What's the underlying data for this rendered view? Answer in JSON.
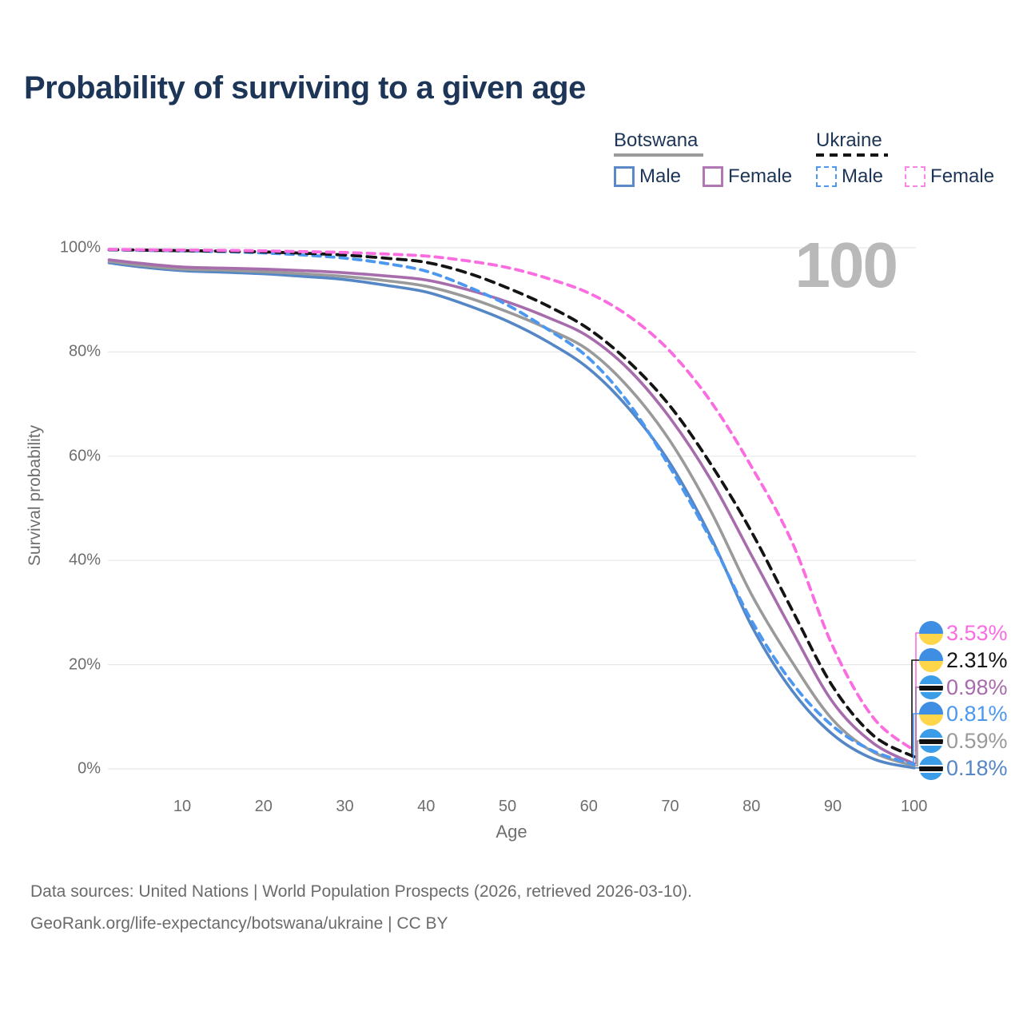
{
  "title": "Probability of surviving to a given age",
  "watermark": "100",
  "legend": {
    "groups": [
      {
        "country": "Botswana",
        "underline_style": "solid",
        "underline_color": "#9a9a9a",
        "items": [
          {
            "label": "Male",
            "color": "#5b88c6",
            "dashed": false
          },
          {
            "label": "Female",
            "color": "#b276b4",
            "dashed": false
          }
        ]
      },
      {
        "country": "Ukraine",
        "underline_style": "dashed",
        "underline_color": "#141414",
        "items": [
          {
            "label": "Male",
            "color": "#4c97f0",
            "dashed": true
          },
          {
            "label": "Female",
            "color": "#fb84e8",
            "dashed": true
          }
        ]
      }
    ]
  },
  "axes": {
    "y_label": "Survival probability",
    "x_label": "Age"
  },
  "chart_data": {
    "type": "line",
    "title": "Probability of surviving to a given age",
    "xlabel": "Age",
    "ylabel": "Survival probability",
    "xlim": [
      0,
      100
    ],
    "ylim": [
      0,
      100
    ],
    "grid": "horizontal-only",
    "legend_position": "top-right",
    "x_ticks": [
      {
        "v": 10,
        "label": "10"
      },
      {
        "v": 20,
        "label": "20"
      },
      {
        "v": 30,
        "label": "30"
      },
      {
        "v": 40,
        "label": "40"
      },
      {
        "v": 50,
        "label": "50"
      },
      {
        "v": 60,
        "label": "60"
      },
      {
        "v": 70,
        "label": "70"
      },
      {
        "v": 80,
        "label": "80"
      },
      {
        "v": 90,
        "label": "90"
      },
      {
        "v": 100,
        "label": "100"
      }
    ],
    "y_ticks": [
      {
        "v": 0,
        "label": "0%"
      },
      {
        "v": 20,
        "label": "20%"
      },
      {
        "v": 40,
        "label": "40%"
      },
      {
        "v": 60,
        "label": "60%"
      },
      {
        "v": 80,
        "label": "80%"
      },
      {
        "v": 100,
        "label": "100%"
      }
    ],
    "x": [
      1,
      5,
      10,
      15,
      20,
      25,
      30,
      35,
      40,
      45,
      50,
      55,
      60,
      65,
      70,
      75,
      80,
      85,
      90,
      95,
      100
    ],
    "series": [
      {
        "name": "Ukraine Female",
        "country": "Ukraine",
        "sex": "Female",
        "color": "#fa6ce0",
        "dash": true,
        "flag": "ukraine",
        "end_label": "3.53%",
        "values": [
          99.7,
          99.6,
          99.55,
          99.5,
          99.4,
          99.25,
          99.1,
          98.8,
          98.4,
          97.5,
          96.2,
          94.1,
          91.3,
          86.8,
          80.1,
          70.5,
          58.0,
          43.5,
          23.5,
          9.8,
          3.53
        ]
      },
      {
        "name": "Ukraine",
        "country": "Ukraine",
        "sex": "Both",
        "color": "#141414",
        "dash": true,
        "flag": "ukraine",
        "end_label": "2.31%",
        "values": [
          99.65,
          99.55,
          99.45,
          99.35,
          99.2,
          98.95,
          98.6,
          98.0,
          97.2,
          95.2,
          92.3,
          88.8,
          84.4,
          78.0,
          69.6,
          58.5,
          45.5,
          30.5,
          15.8,
          6.4,
          2.31
        ]
      },
      {
        "name": "Botswana Female",
        "country": "Botswana",
        "sex": "Female",
        "color": "#a76cab",
        "dash": false,
        "flag": "botswana",
        "end_label": "0.98%",
        "values": [
          97.7,
          97.0,
          96.3,
          96.1,
          95.9,
          95.6,
          95.2,
          94.6,
          93.8,
          92.0,
          89.6,
          86.6,
          82.9,
          76.5,
          67.3,
          55.5,
          41.0,
          26.5,
          12.8,
          4.9,
          0.98
        ]
      },
      {
        "name": "Ukraine Male",
        "country": "Ukraine",
        "sex": "Male",
        "color": "#4c97f0",
        "dash": true,
        "flag": "ukraine",
        "end_label": "0.81%",
        "values": [
          99.6,
          99.5,
          99.4,
          99.25,
          99.0,
          98.6,
          98.0,
          97.0,
          95.5,
          92.6,
          89.0,
          84.3,
          78.8,
          70.0,
          57.8,
          44.0,
          28.5,
          16.5,
          8.2,
          3.4,
          0.81
        ]
      },
      {
        "name": "Botswana",
        "country": "Botswana",
        "sex": "Both",
        "color": "#9a9a9a",
        "dash": false,
        "flag": "botswana",
        "end_label": "0.59%",
        "values": [
          97.4,
          96.6,
          95.9,
          95.7,
          95.4,
          95.0,
          94.5,
          93.7,
          92.6,
          90.5,
          87.7,
          84.4,
          80.3,
          73.0,
          62.9,
          49.5,
          33.5,
          20.5,
          9.4,
          3.2,
          0.59
        ]
      },
      {
        "name": "Botswana Male",
        "country": "Botswana",
        "sex": "Male",
        "color": "#5586c5",
        "dash": false,
        "flag": "botswana",
        "end_label": "0.18%",
        "values": [
          97.1,
          96.3,
          95.6,
          95.3,
          95.0,
          94.5,
          93.9,
          92.8,
          91.5,
          89.0,
          85.9,
          81.9,
          76.8,
          69.0,
          58.6,
          44.5,
          27.5,
          15.0,
          6.6,
          1.9,
          0.18
        ]
      }
    ]
  },
  "flags": {
    "ukraine": {
      "top": "#3e8ee4",
      "bottom": "#ffd54a"
    },
    "botswana": {
      "field": "#3b9de8",
      "band": "#111111",
      "fimbriation": "#ffffff"
    }
  },
  "colors": {
    "title": "#1d3557",
    "axis_text": "#6e6e6e",
    "gridline": "#e7e7e7",
    "watermark": "#b9b9b9",
    "footer_text": "#6b6b6b"
  },
  "footer": {
    "line1": "Data sources: United Nations | World Population Prospects (2026, retrieved 2026-03-10).",
    "line2": "GeoRank.org/life-expectancy/botswana/ukraine | CC BY"
  }
}
